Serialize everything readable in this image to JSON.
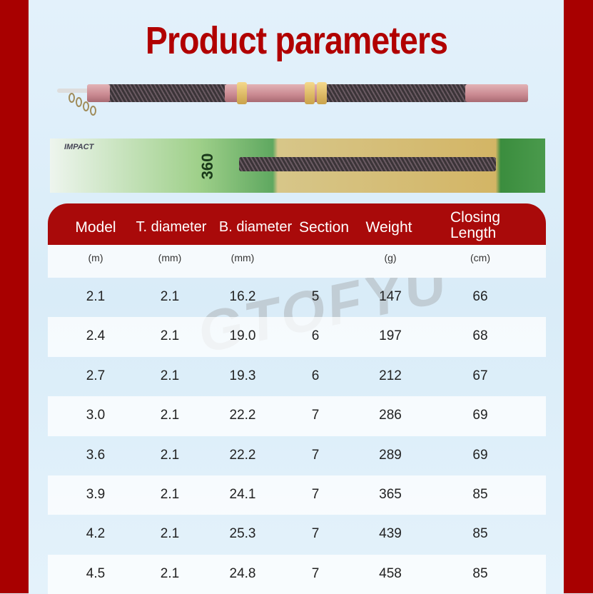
{
  "title": "Product parameters",
  "watermark": "GTOFYU",
  "colors": {
    "border": "#a80000",
    "title": "#b10000",
    "header": "#a90a0a"
  },
  "package": {
    "brand": "IMPACT",
    "size": "360"
  },
  "table": {
    "headers": [
      "Model",
      "T. diameter",
      "B. diameter",
      "Section",
      "Weight",
      "Closing Length"
    ],
    "units": [
      "(m)",
      "(mm)",
      "(mm)",
      "",
      "(g)",
      "(cm)"
    ],
    "rows": [
      [
        "2.1",
        "2.1",
        "16.2",
        "5",
        "147",
        "66"
      ],
      [
        "2.4",
        "2.1",
        "19.0",
        "6",
        "197",
        "68"
      ],
      [
        "2.7",
        "2.1",
        "19.3",
        "6",
        "212",
        "67"
      ],
      [
        "3.0",
        "2.1",
        "22.2",
        "7",
        "286",
        "69"
      ],
      [
        "3.6",
        "2.1",
        "22.2",
        "7",
        "289",
        "69"
      ],
      [
        "3.9",
        "2.1",
        "24.1",
        "7",
        "365",
        "85"
      ],
      [
        "4.2",
        "2.1",
        "25.3",
        "7",
        "439",
        "85"
      ],
      [
        "4.5",
        "2.1",
        "24.8",
        "7",
        "458",
        "85"
      ]
    ]
  }
}
